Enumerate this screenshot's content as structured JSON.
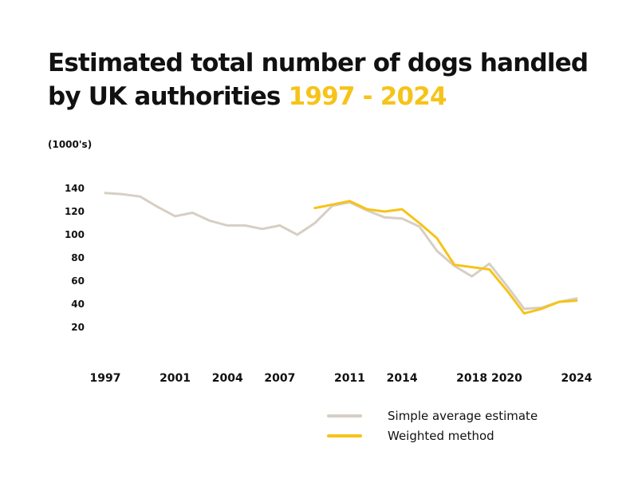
{
  "title": {
    "main": "Estimated total number of dogs handled by UK authorities ",
    "highlight": "1997 - 2024"
  },
  "colors": {
    "accent": "#f6c31a",
    "simple": "#d6cfc4",
    "weighted": "#f6c31a"
  },
  "chart_data": {
    "type": "line",
    "title": "Estimated total number of dogs handled by UK authorities 1997 - 2024",
    "ylabel": "(1000's)",
    "xlabel": "",
    "xlim": [
      1997,
      2024
    ],
    "ylim": [
      20,
      140
    ],
    "yticks": [
      140,
      120,
      100,
      80,
      60,
      40,
      20
    ],
    "xticks": [
      "1997",
      "2001",
      "2004",
      "2007",
      "2011",
      "2014",
      "2018",
      "2020",
      "2024"
    ],
    "grid": false,
    "legend_position": "bottom-right",
    "series": [
      {
        "name": "Simple average estimate",
        "color": "#d6cfc4",
        "x": [
          1997,
          1998,
          1999,
          2000,
          2001,
          2002,
          2003,
          2004,
          2005,
          2006,
          2007,
          2008,
          2009,
          2010,
          2011,
          2012,
          2013,
          2014,
          2015,
          2016,
          2017,
          2018,
          2019,
          2020,
          2021,
          2022,
          2023,
          2024
        ],
        "values": [
          136,
          135,
          133,
          124,
          116,
          119,
          112,
          108,
          108,
          105,
          108,
          100,
          110,
          125,
          128,
          121,
          115,
          114,
          107,
          86,
          73,
          64,
          75,
          56,
          36,
          37,
          42,
          45
        ]
      },
      {
        "name": "Weighted method",
        "color": "#f6c31a",
        "x": [
          2009,
          2010,
          2011,
          2012,
          2013,
          2014,
          2015,
          2016,
          2017,
          2018,
          2019,
          2020,
          2021,
          2022,
          2023,
          2024
        ],
        "values": [
          123,
          126,
          129,
          122,
          120,
          122,
          110,
          97,
          74,
          72,
          70,
          52,
          32,
          36,
          42,
          43
        ]
      }
    ]
  }
}
